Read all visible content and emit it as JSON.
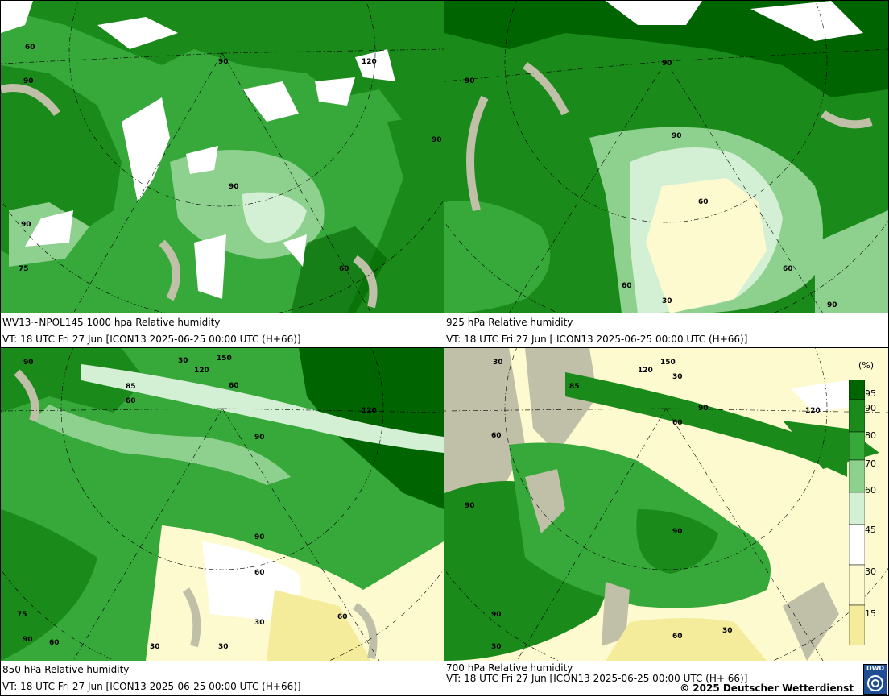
{
  "colors": {
    "c95": "#006400",
    "c90": "#1a8a1a",
    "c80": "#37a83a",
    "c70": "#8ed08e",
    "c60": "#d4f0d4",
    "c45": "#ffffff",
    "c30": "#fefad0",
    "c15": "#f4ec9a",
    "c0": "#e0d050",
    "terrain": "#c0bfa8",
    "white": "#ffffff"
  },
  "panels": [
    {
      "id": "p1",
      "line1": "WV13~NPOL145 1000 hpa Relative humidity",
      "line2": "VT: 18 UTC Fri  27 Jun [ICON13 2025-06-25 00:00 UTC  (H+66)]",
      "contour_labels": [
        "60",
        "90",
        "90",
        "90",
        "90",
        "90",
        "120",
        "75",
        "60"
      ]
    },
    {
      "id": "p2",
      "line1": "925 hPa Relative humidity",
      "line2": "VT: 18 UTC Fri  27 Jun [ ICON13 2025-06-25 00:00 UTC  (H+66)]",
      "contour_labels": [
        "90",
        "90",
        "60",
        "60",
        "60",
        "30",
        "90",
        "90"
      ]
    },
    {
      "id": "p3",
      "line1": "850 hPa  Relative humidity",
      "line2": "VT: 18 UTC Fri  27 Jun [ICON13 2025-06-25 00:00 UTC  (H+66)]",
      "contour_labels": [
        "30",
        "90",
        "60",
        "90",
        "60",
        "90",
        "60",
        "30",
        "90",
        "60",
        "30",
        "150",
        "120",
        "120",
        "85",
        "75",
        "30",
        "60"
      ]
    },
    {
      "id": "p4",
      "line1": "700 hPa Relative humidity",
      "line2": "VT: 18 UTC Fri  27 Jun [ICON13 2025-06-25 00:00 UTC  (H+ 66)]",
      "contour_labels": [
        "30",
        "60",
        "90",
        "90",
        "90",
        "60",
        "30",
        "30",
        "90",
        "60",
        "150",
        "30",
        "120",
        "85",
        "120"
      ]
    }
  ],
  "legend": {
    "unit": "(%)",
    "ticks": [
      "95",
      "90",
      "80",
      "70",
      "60",
      "45",
      "30",
      "15"
    ]
  },
  "footer": {
    "copyright": "© 2025 Deutscher Wetterdienst",
    "logo_text": "DWD"
  }
}
